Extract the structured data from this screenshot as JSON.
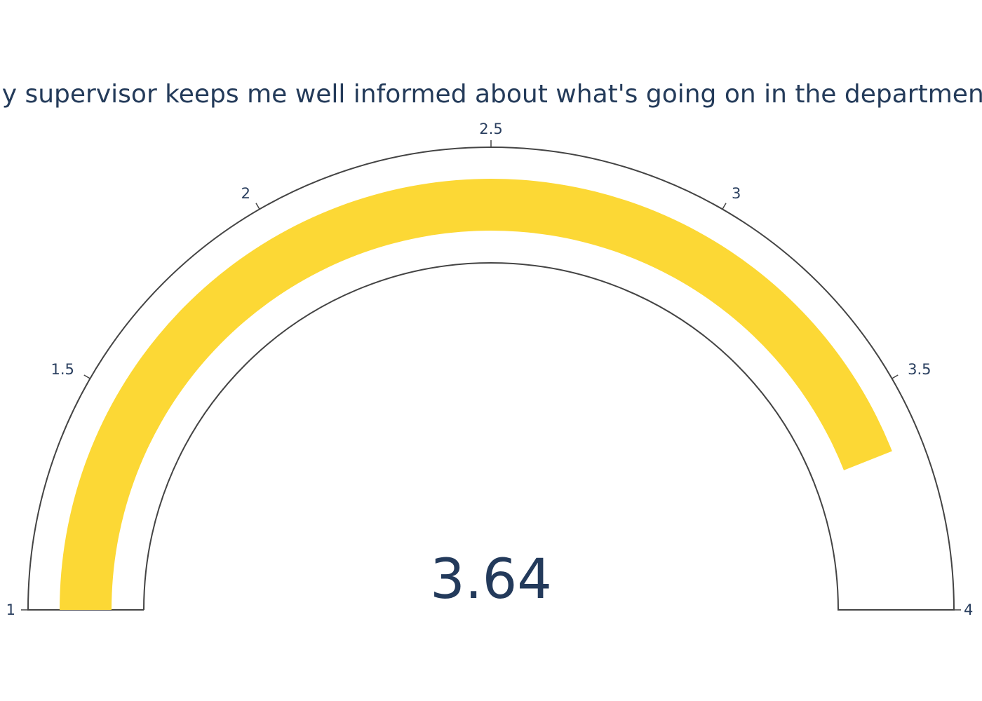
{
  "chart_data": {
    "type": "gauge",
    "title": "My supervisor keeps me well informed about what's going on in the department.",
    "value": 3.64,
    "value_label": "3.64",
    "range": [
      1,
      4
    ],
    "ticks": [
      {
        "value": 1,
        "label": "1"
      },
      {
        "value": 1.5,
        "label": "1.5"
      },
      {
        "value": 2,
        "label": "2"
      },
      {
        "value": 2.5,
        "label": "2.5"
      },
      {
        "value": 3,
        "label": "3"
      },
      {
        "value": 3.5,
        "label": "3.5"
      },
      {
        "value": 4,
        "label": "4"
      }
    ],
    "colors": {
      "bar": "#fcd835",
      "outline": "#444444",
      "text": "#2a3f5f",
      "background": "#ffffff"
    }
  }
}
